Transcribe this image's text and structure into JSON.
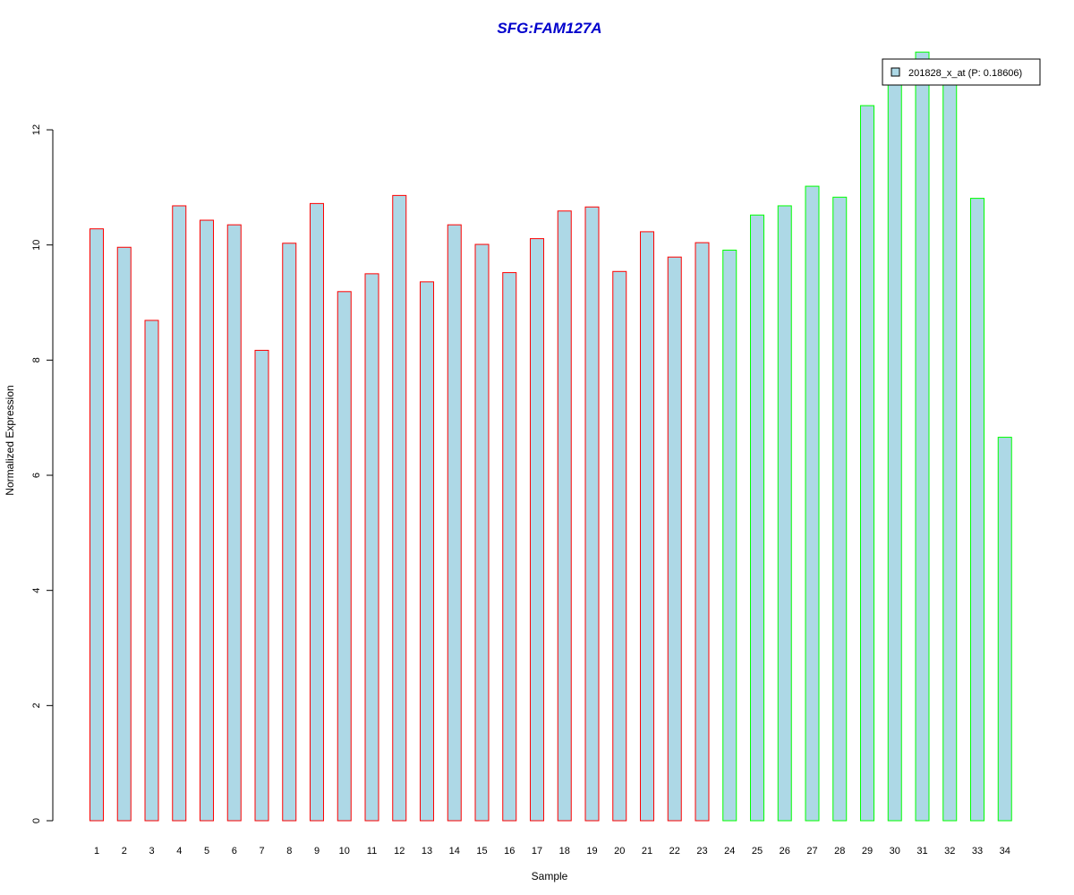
{
  "chart_data": {
    "type": "bar",
    "title": "SFG:FAM127A",
    "xlabel": "Sample",
    "ylabel": "Normalized Expression",
    "categories": [
      "1",
      "2",
      "3",
      "4",
      "5",
      "6",
      "7",
      "8",
      "9",
      "10",
      "11",
      "12",
      "13",
      "14",
      "15",
      "16",
      "17",
      "18",
      "19",
      "20",
      "21",
      "22",
      "23",
      "24",
      "25",
      "26",
      "27",
      "28",
      "29",
      "30",
      "31",
      "32",
      "33",
      "34"
    ],
    "series": [
      {
        "name": "201828_x_at (P: 0.18606)",
        "values": [
          10.28,
          9.96,
          8.69,
          10.68,
          10.43,
          10.35,
          8.17,
          10.03,
          10.72,
          9.19,
          9.5,
          10.86,
          9.36,
          10.35,
          10.01,
          9.52,
          10.11,
          10.59,
          10.66,
          9.54,
          10.23,
          9.79,
          10.04,
          9.91,
          10.52,
          10.68,
          11.02,
          10.83,
          12.42,
          12.92,
          13.35,
          12.92,
          10.81,
          6.66
        ]
      }
    ],
    "bar_fill": "#add8e6",
    "group_outline_colors": [
      "#ff0000",
      "#00ff00"
    ],
    "outline_by_sample": [
      "red",
      "red",
      "red",
      "red",
      "red",
      "red",
      "red",
      "red",
      "red",
      "red",
      "red",
      "red",
      "red",
      "red",
      "red",
      "red",
      "red",
      "red",
      "red",
      "red",
      "red",
      "red",
      "red",
      "green",
      "green",
      "green",
      "green",
      "green",
      "green",
      "green",
      "green",
      "green",
      "green",
      "green"
    ],
    "title_color": "#0000cc",
    "ylim": [
      0,
      13.35
    ],
    "y_ticks": [
      "0",
      "2",
      "4",
      "6",
      "8",
      "10",
      "12"
    ],
    "grid": false,
    "legend_position": "top-right"
  }
}
